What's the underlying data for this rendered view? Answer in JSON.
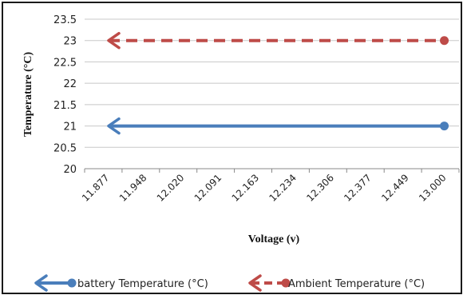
{
  "chart_data": {
    "type": "line",
    "title": "",
    "xlabel": "Voltage (v)",
    "ylabel": "Temperature  (°C)",
    "categories": [
      "11.877",
      "11.948",
      "12.020",
      "12.091",
      "12.163",
      "12.234",
      "12.306",
      "12.377",
      "12.449",
      "13.000"
    ],
    "ylim": [
      20,
      23.5
    ],
    "yticks": [
      "20",
      "20.5",
      "21",
      "21.5",
      "22",
      "22.5",
      "23",
      "23.5"
    ],
    "grid": "horizontal",
    "legend_position": "bottom",
    "series": [
      {
        "name": "battery Temperature (°C)",
        "values": [
          21,
          21,
          21,
          21,
          21,
          21,
          21,
          21,
          21,
          21
        ],
        "color": "#4a7ebb",
        "line_style": "solid",
        "marker_start": "arrow",
        "marker_end": "circle"
      },
      {
        "name": "Ambient Temperature  (°C)",
        "values": [
          23,
          23,
          23,
          23,
          23,
          23,
          23,
          23,
          23,
          23
        ],
        "color": "#be4b48",
        "line_style": "dashed",
        "marker_start": "arrow",
        "marker_end": "circle"
      }
    ]
  }
}
